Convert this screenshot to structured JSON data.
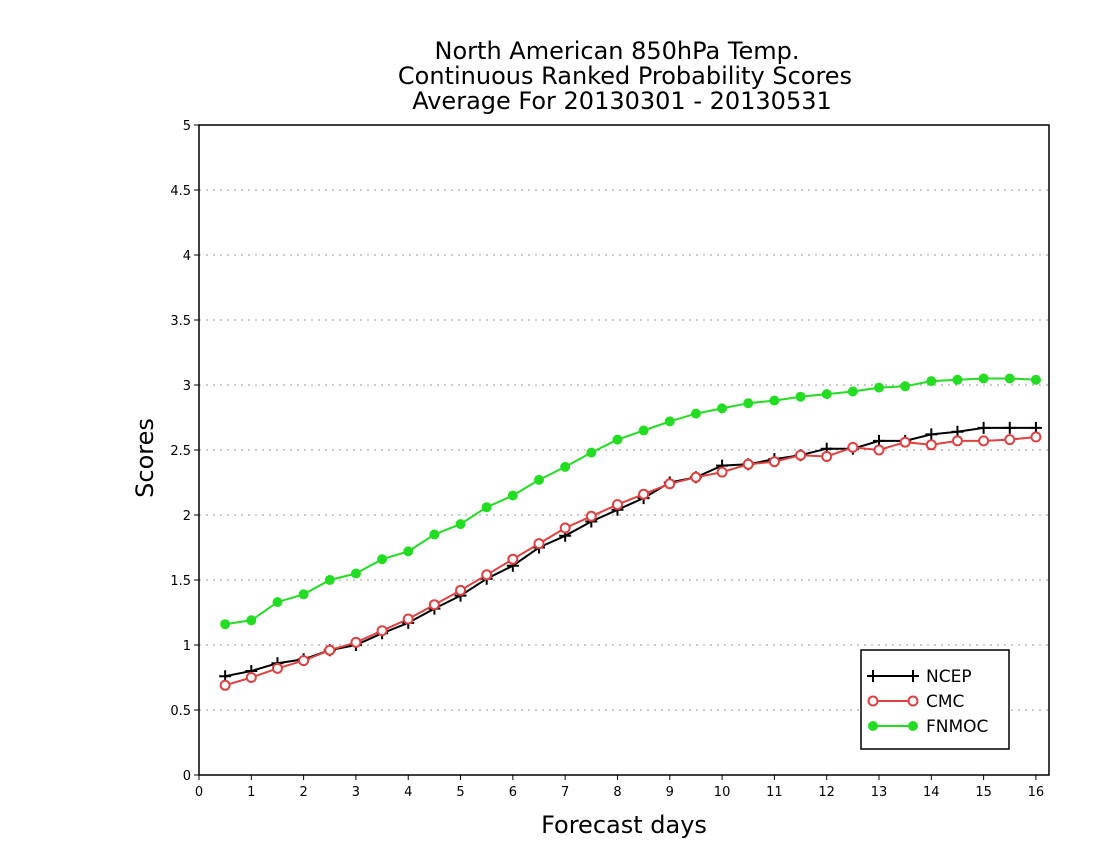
{
  "chart_data": {
    "type": "line",
    "title": [
      "North American 850hPa Temp.",
      "Continuous Ranked Probability Scores",
      "Average For 20130301 - 20130531"
    ],
    "xlabel": "Forecast days",
    "ylabel": "Scores",
    "xlim": [
      0,
      16.25
    ],
    "ylim": [
      0,
      5
    ],
    "xticks": [
      0,
      1,
      2,
      3,
      4,
      5,
      6,
      7,
      8,
      9,
      10,
      11,
      12,
      13,
      14,
      15,
      16
    ],
    "yticks": [
      0,
      0.5,
      1,
      1.5,
      2,
      2.5,
      3,
      3.5,
      4,
      4.5,
      5
    ],
    "ytick_labels": [
      "0",
      "0.5",
      "1",
      "1.5",
      "2",
      "2.5",
      "3",
      "3.5",
      "4",
      "4.5",
      "5"
    ],
    "grid": "dotted horizontal",
    "legend_position": "bottom-right",
    "x": [
      0.5,
      1,
      1.5,
      2,
      2.5,
      3,
      3.5,
      4,
      4.5,
      5,
      5.5,
      6,
      6.5,
      7,
      7.5,
      8,
      8.5,
      9,
      9.5,
      10,
      10.5,
      11,
      11.5,
      12,
      12.5,
      13,
      13.5,
      14,
      14.5,
      15,
      15.5,
      16
    ],
    "series": [
      {
        "name": "NCEP",
        "color": "#000000",
        "marker": "plus",
        "values": [
          0.76,
          0.8,
          0.86,
          0.89,
          0.96,
          1.0,
          1.09,
          1.17,
          1.28,
          1.38,
          1.51,
          1.61,
          1.75,
          1.84,
          1.95,
          2.04,
          2.13,
          2.25,
          2.29,
          2.38,
          2.39,
          2.43,
          2.46,
          2.51,
          2.51,
          2.57,
          2.57,
          2.62,
          2.64,
          2.67,
          2.67,
          2.67
        ]
      },
      {
        "name": "CMC",
        "color": "#e04040",
        "marker": "open-circle",
        "values": [
          0.69,
          0.75,
          0.82,
          0.88,
          0.96,
          1.02,
          1.11,
          1.2,
          1.31,
          1.42,
          1.54,
          1.66,
          1.78,
          1.9,
          1.99,
          2.08,
          2.16,
          2.24,
          2.29,
          2.33,
          2.39,
          2.41,
          2.46,
          2.45,
          2.52,
          2.5,
          2.56,
          2.54,
          2.57,
          2.57,
          2.58,
          2.6
        ]
      },
      {
        "name": "FNMOC",
        "color": "#22dd22",
        "marker": "filled-circle",
        "values": [
          1.16,
          1.19,
          1.33,
          1.39,
          1.5,
          1.55,
          1.66,
          1.72,
          1.85,
          1.93,
          2.06,
          2.15,
          2.27,
          2.37,
          2.48,
          2.58,
          2.65,
          2.72,
          2.78,
          2.82,
          2.86,
          2.88,
          2.91,
          2.93,
          2.95,
          2.98,
          2.99,
          3.03,
          3.04,
          3.05,
          3.05,
          3.04
        ]
      }
    ]
  }
}
